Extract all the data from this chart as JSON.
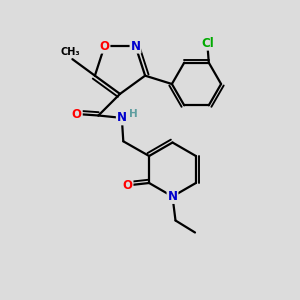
{
  "background_color": "#dcdcdc",
  "atom_colors": {
    "O": "#ff0000",
    "N": "#0000cd",
    "Cl": "#00aa00",
    "C": "#000000",
    "H": "#5f9ea0"
  },
  "bond_color": "#000000",
  "bond_width": 1.6
}
